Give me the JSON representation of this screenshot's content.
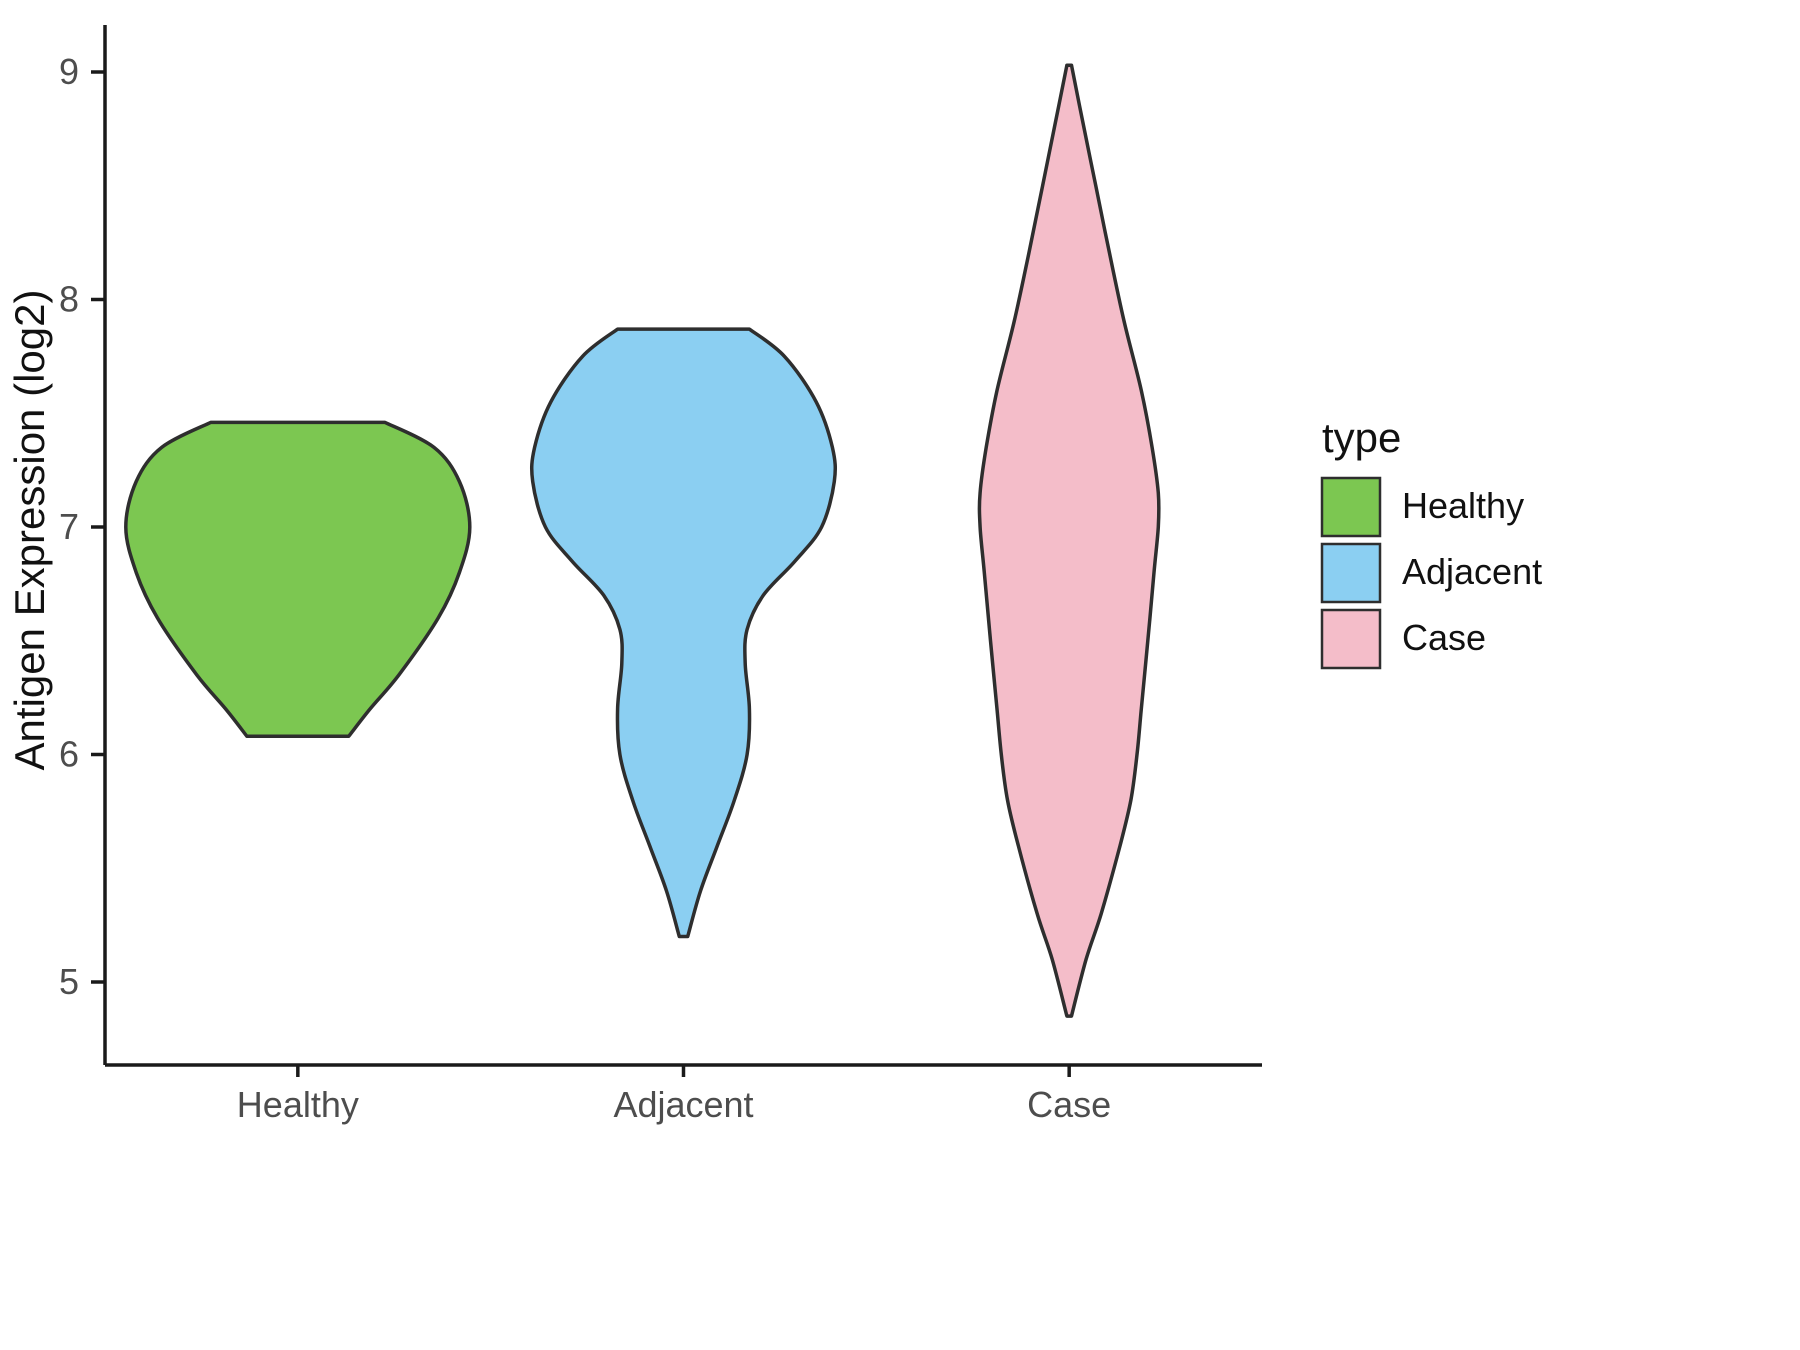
{
  "chart_data": {
    "type": "violin",
    "title": "",
    "xlabel": "",
    "ylabel": "Antigen Expression (log2)",
    "categories": [
      "Healthy",
      "Adjacent",
      "Case"
    ],
    "y_ticks": [
      5,
      6,
      7,
      8,
      9
    ],
    "ylim": [
      4.6,
      9.2
    ],
    "grid": false,
    "legend": {
      "title": "type",
      "position": "right",
      "entries": [
        "Healthy",
        "Adjacent",
        "Case"
      ]
    },
    "colors": {
      "outline": "#2e2e2e",
      "axis": "#1a1a1a",
      "tick_text": "#4d4d4d",
      "label_text": "#111111",
      "background": "#ffffff"
    },
    "series": [
      {
        "name": "Healthy",
        "fill": "#7cc751",
        "y_min": 6.08,
        "y_max": 7.46,
        "widest_at": 7.0,
        "profile": [
          [
            7.46,
            0.226
          ],
          [
            7.35,
            0.353
          ],
          [
            7.2,
            0.419
          ],
          [
            7.0,
            0.446
          ],
          [
            6.8,
            0.419
          ],
          [
            6.6,
            0.364
          ],
          [
            6.35,
            0.262
          ],
          [
            6.2,
            0.187
          ],
          [
            6.08,
            0.132
          ]
        ]
      },
      {
        "name": "Adjacent",
        "fill": "#8bcff2",
        "y_min": 5.2,
        "y_max": 7.87,
        "widest_at": 7.2,
        "profile": [
          [
            7.87,
            0.171
          ],
          [
            7.75,
            0.262
          ],
          [
            7.55,
            0.344
          ],
          [
            7.35,
            0.386
          ],
          [
            7.2,
            0.391
          ],
          [
            7.0,
            0.358
          ],
          [
            6.85,
            0.289
          ],
          [
            6.7,
            0.207
          ],
          [
            6.55,
            0.165
          ],
          [
            6.4,
            0.16
          ],
          [
            6.2,
            0.171
          ],
          [
            6.0,
            0.165
          ],
          [
            5.8,
            0.132
          ],
          [
            5.6,
            0.088
          ],
          [
            5.4,
            0.044
          ],
          [
            5.2,
            0.011
          ]
        ]
      },
      {
        "name": "Case",
        "fill": "#f4bdc9",
        "y_min": 4.85,
        "y_max": 9.03,
        "widest_at": 7.05,
        "profile": [
          [
            9.03,
            0.006
          ],
          [
            8.8,
            0.033
          ],
          [
            8.5,
            0.069
          ],
          [
            8.2,
            0.105
          ],
          [
            7.9,
            0.143
          ],
          [
            7.6,
            0.187
          ],
          [
            7.35,
            0.215
          ],
          [
            7.15,
            0.231
          ],
          [
            7.0,
            0.231
          ],
          [
            6.8,
            0.22
          ],
          [
            6.5,
            0.204
          ],
          [
            6.2,
            0.187
          ],
          [
            6.0,
            0.176
          ],
          [
            5.8,
            0.16
          ],
          [
            5.6,
            0.132
          ],
          [
            5.3,
            0.083
          ],
          [
            5.1,
            0.044
          ],
          [
            4.85,
            0.006
          ]
        ]
      }
    ]
  }
}
